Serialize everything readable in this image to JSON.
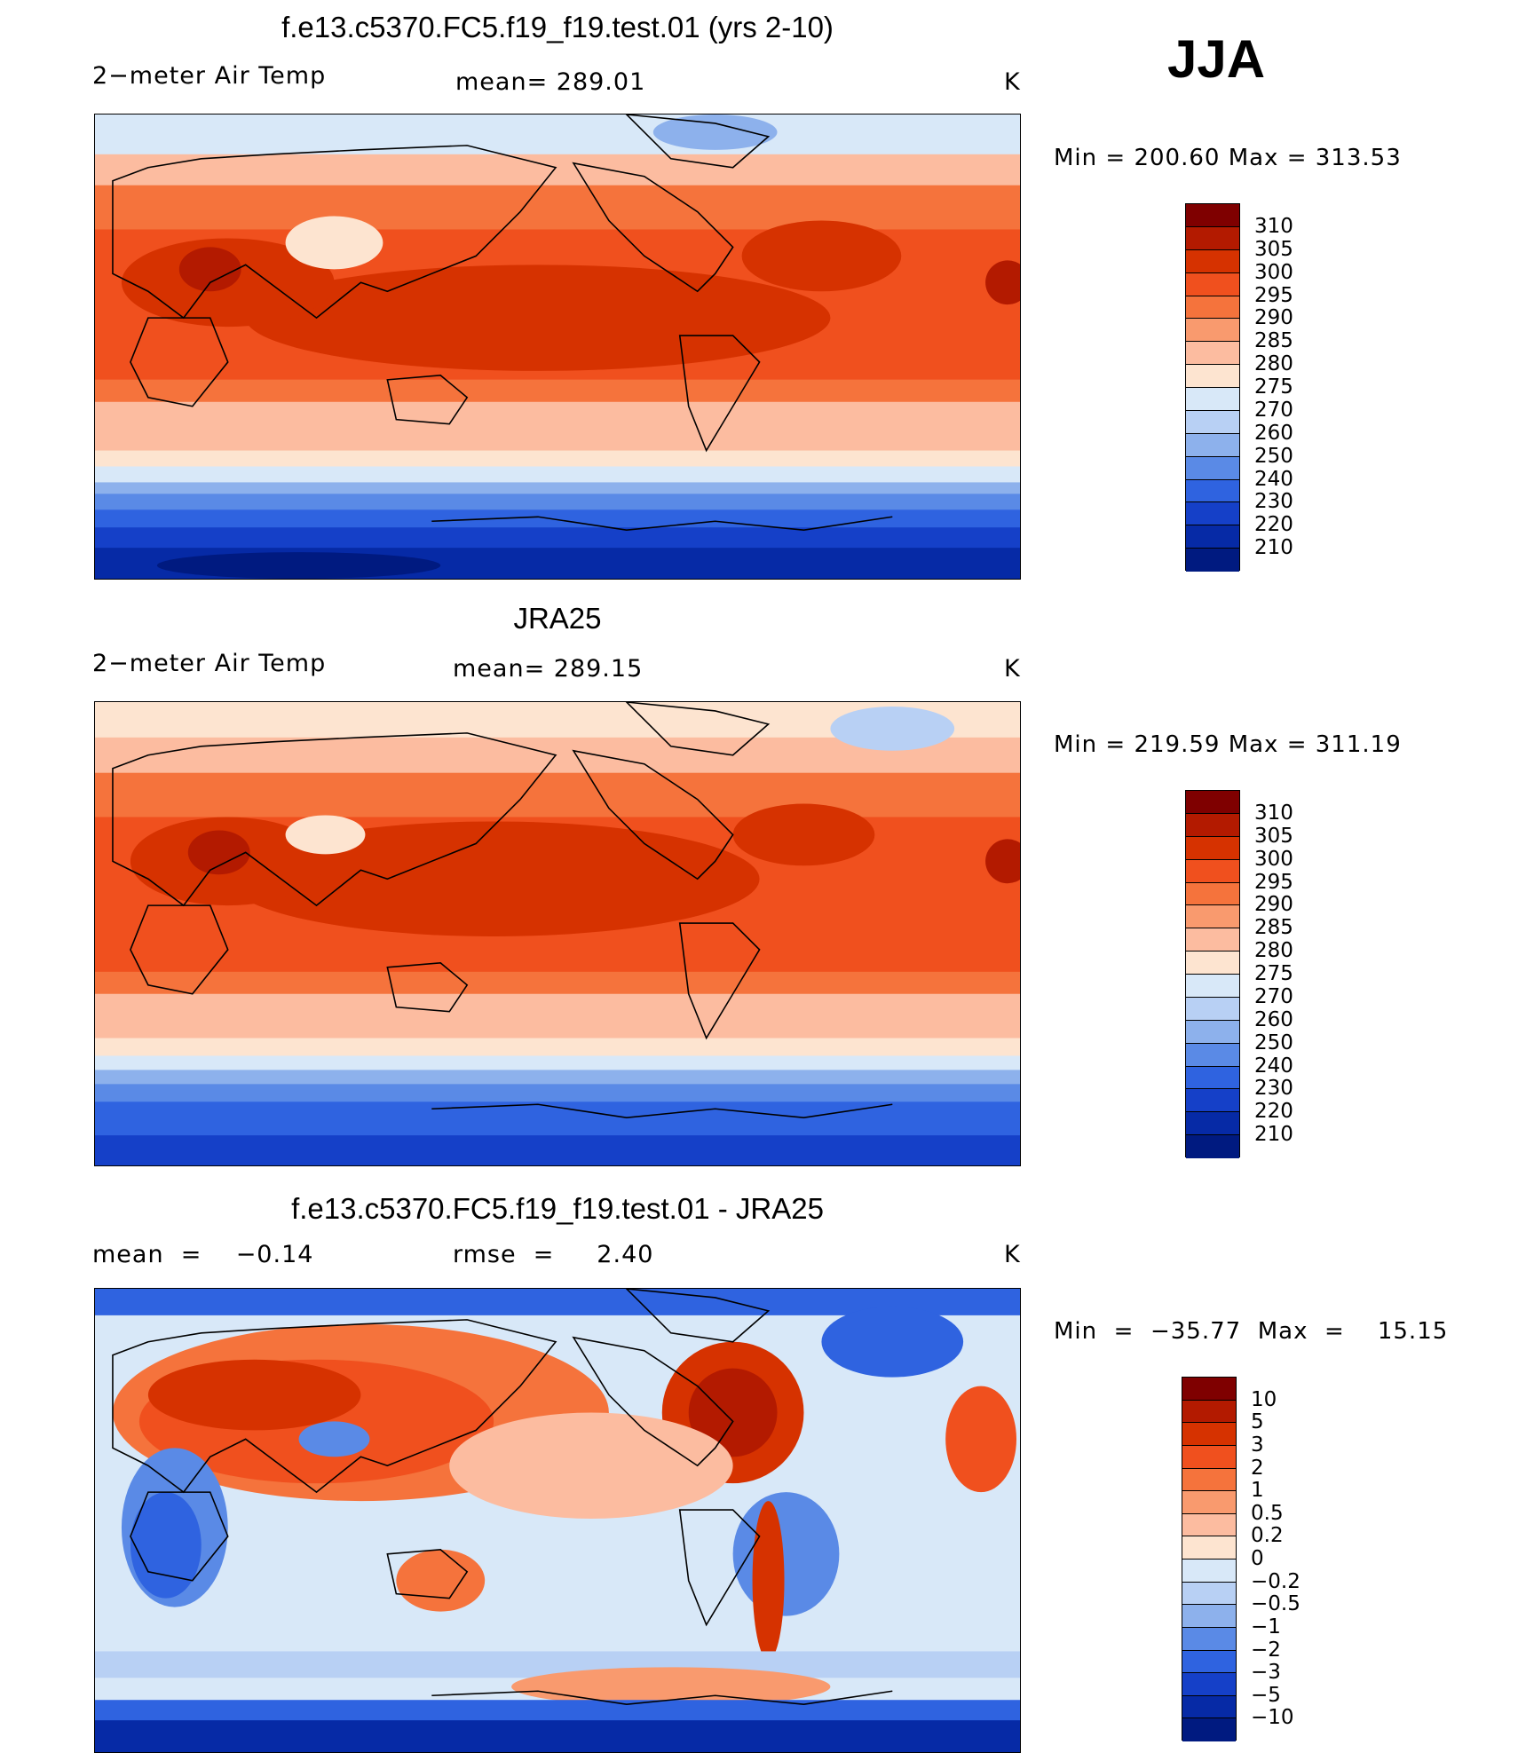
{
  "season": "JJA",
  "chart_data": [
    {
      "type": "heatmap",
      "title": "f.e13.c5370.FC5.f19_f19.test.01 (yrs 2-10)",
      "variable": "2−meter Air Temp",
      "stat_text": "mean=  289.01",
      "units": "K",
      "minmax_text": "Min  =  200.60  Max  =  313.53",
      "stats": {
        "mean": 289.01,
        "min": 200.6,
        "max": 313.53
      },
      "colorbar": {
        "labels": [
          "310",
          "305",
          "300",
          "295",
          "290",
          "285",
          "280",
          "275",
          "270",
          "260",
          "250",
          "240",
          "230",
          "220",
          "210"
        ],
        "colors": [
          "#7f0000",
          "#b31a00",
          "#d63200",
          "#f0501e",
          "#f5733c",
          "#f99a6e",
          "#fcbca0",
          "#fde4d0",
          "#d8e8f8",
          "#b8d0f4",
          "#8db1ec",
          "#5a8ae6",
          "#2f63e0",
          "#1540c8",
          "#062aa6",
          "#001a80"
        ]
      }
    },
    {
      "type": "heatmap",
      "title": "JRA25",
      "variable": "2−meter Air Temp",
      "stat_text": "mean=  289.15",
      "units": "K",
      "minmax_text": "Min  =  219.59  Max  =  311.19",
      "stats": {
        "mean": 289.15,
        "min": 219.59,
        "max": 311.19
      },
      "colorbar": {
        "labels": [
          "310",
          "305",
          "300",
          "295",
          "290",
          "285",
          "280",
          "275",
          "270",
          "260",
          "250",
          "240",
          "230",
          "220",
          "210"
        ],
        "colors": [
          "#7f0000",
          "#b31a00",
          "#d63200",
          "#f0501e",
          "#f5733c",
          "#f99a6e",
          "#fcbca0",
          "#fde4d0",
          "#d8e8f8",
          "#b8d0f4",
          "#8db1ec",
          "#5a8ae6",
          "#2f63e0",
          "#1540c8",
          "#062aa6",
          "#001a80"
        ]
      }
    },
    {
      "type": "heatmap",
      "title": "f.e13.c5370.FC5.f19_f19.test.01 - JRA25",
      "stat_left_text": "mean  =    −0.14",
      "stat_mid_text": "rmse  =     2.40",
      "units": "K",
      "minmax_text": "Min  =  −35.77  Max  =    15.15",
      "stats": {
        "mean": -0.14,
        "rmse": 2.4,
        "min": -35.77,
        "max": 15.15
      },
      "colorbar": {
        "labels": [
          "10",
          "5",
          "3",
          "2",
          "1",
          "0.5",
          "0.2",
          "0",
          "−0.2",
          "−0.5",
          "−1",
          "−2",
          "−3",
          "−5",
          "−10"
        ],
        "colors": [
          "#7f0000",
          "#b31a00",
          "#d63200",
          "#f0501e",
          "#f5733c",
          "#f99a6e",
          "#fcbca0",
          "#fde4d0",
          "#d8e8f8",
          "#b8d0f4",
          "#8db1ec",
          "#5a8ae6",
          "#2f63e0",
          "#1540c8",
          "#062aa6",
          "#001a80"
        ]
      }
    }
  ]
}
